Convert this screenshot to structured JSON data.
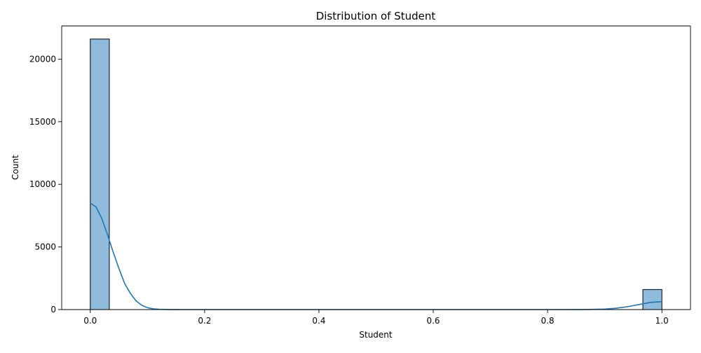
{
  "chart_data": {
    "type": "bar",
    "title": "Distribution of Student",
    "xlabel": "Student",
    "ylabel": "Count",
    "xlim": [
      -0.05,
      1.05
    ],
    "ylim": [
      0,
      22650
    ],
    "x_ticks": [
      0.0,
      0.2,
      0.4,
      0.6,
      0.8,
      1.0
    ],
    "x_tick_labels": [
      "0.0",
      "0.2",
      "0.4",
      "0.6",
      "0.8",
      "1.0"
    ],
    "y_ticks": [
      0,
      5000,
      10000,
      15000,
      20000
    ],
    "y_tick_labels": [
      "0",
      "5000",
      "10000",
      "15000",
      "20000"
    ],
    "bars": [
      {
        "x0": 0.0,
        "x1": 0.0333,
        "count": 21600
      },
      {
        "x0": 0.9667,
        "x1": 1.0,
        "count": 1600
      }
    ],
    "kde": {
      "x": [
        0.0,
        0.01,
        0.02,
        0.03,
        0.04,
        0.05,
        0.06,
        0.07,
        0.08,
        0.09,
        0.1,
        0.11,
        0.12,
        0.14,
        0.16,
        0.2,
        0.4,
        0.6,
        0.8,
        0.86,
        0.88,
        0.9,
        0.92,
        0.94,
        0.96,
        0.98,
        1.0
      ],
      "y": [
        8500,
        8200,
        7300,
        6000,
        4600,
        3300,
        2100,
        1300,
        700,
        350,
        150,
        60,
        25,
        5,
        0,
        0,
        0,
        0,
        0,
        5,
        15,
        40,
        110,
        230,
        400,
        570,
        640
      ]
    },
    "grid": false,
    "legend": "none",
    "colors": {
      "bar_fill": "#8fbbdc",
      "bar_edge": "#000000",
      "kde_line": "#1f77b4"
    }
  }
}
